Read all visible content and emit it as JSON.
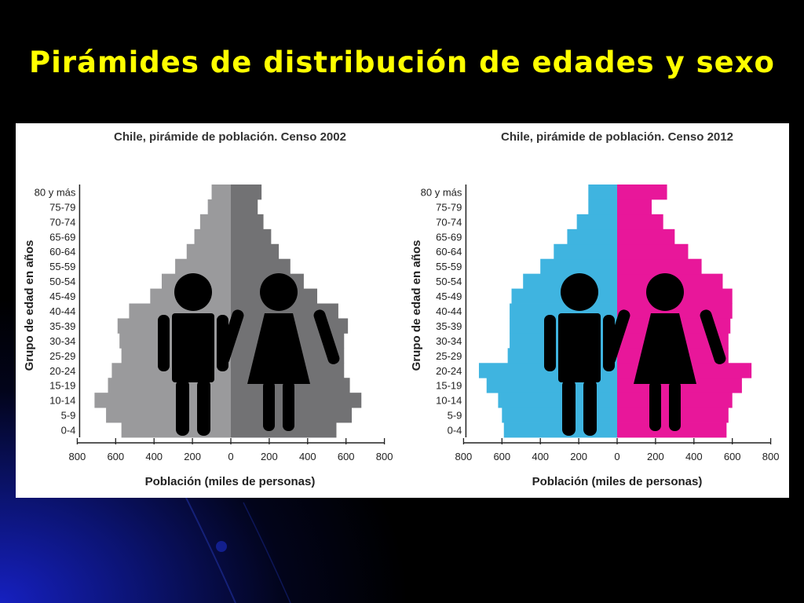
{
  "slide": {
    "title": "Pirámides de distribución de edades y sexo",
    "background_color": "#000000",
    "title_color": "#ffff00"
  },
  "chart_data": [
    {
      "type": "bar",
      "orientation": "horizontal-pyramid",
      "title": "Chile, pirámide de población. Censo 2002",
      "xlabel": "Población (miles de personas)",
      "ylabel": "Grupo de edad en años",
      "categories": [
        "0-4",
        "5-9",
        "10-14",
        "15-19",
        "20-24",
        "25-29",
        "30-34",
        "35-39",
        "40-44",
        "45-49",
        "50-54",
        "55-59",
        "60-64",
        "65-69",
        "70-74",
        "75-79",
        "80 y más"
      ],
      "xlim": [
        -800,
        800
      ],
      "xticks": [
        -800,
        -600,
        -400,
        -200,
        0,
        200,
        400,
        600,
        800
      ],
      "xtick_labels": [
        "800",
        "600",
        "400",
        "200",
        "0",
        "200",
        "400",
        "600",
        "800"
      ],
      "series": [
        {
          "values": [
            570,
            650,
            710,
            640,
            620,
            570,
            580,
            590,
            530,
            420,
            360,
            290,
            230,
            190,
            160,
            120,
            100
          ],
          "color": "#9a9a9c"
        },
        {
          "values": [
            550,
            630,
            680,
            620,
            590,
            590,
            590,
            610,
            560,
            450,
            380,
            310,
            250,
            210,
            170,
            140,
            160
          ],
          "color": "#727274"
        }
      ],
      "icons": [
        "male-figure-icon",
        "female-figure-icon"
      ]
    },
    {
      "type": "bar",
      "orientation": "horizontal-pyramid",
      "title": "Chile, pirámide de población. Censo 2012",
      "xlabel": "Población (miles de personas)",
      "ylabel": "Grupo de edad en años",
      "categories": [
        "0-4",
        "5-9",
        "10-14",
        "15-19",
        "20-24",
        "25-29",
        "30-34",
        "35-39",
        "40-44",
        "45-49",
        "50-54",
        "55-59",
        "60-64",
        "65-69",
        "70-74",
        "75-79",
        "80 y más"
      ],
      "xlim": [
        -800,
        800
      ],
      "xticks": [
        -800,
        -600,
        -400,
        -200,
        0,
        200,
        400,
        600,
        800
      ],
      "xtick_labels": [
        "800",
        "600",
        "400",
        "200",
        "0",
        "200",
        "400",
        "600",
        "800"
      ],
      "series": [
        {
          "values": [
            590,
            600,
            620,
            680,
            720,
            570,
            560,
            560,
            560,
            550,
            490,
            400,
            330,
            260,
            210,
            150,
            150
          ],
          "color": "#3fb4e0"
        },
        {
          "values": [
            570,
            580,
            600,
            650,
            700,
            580,
            580,
            590,
            600,
            600,
            550,
            440,
            370,
            300,
            240,
            180,
            260
          ],
          "color": "#e8179a"
        }
      ],
      "icons": [
        "male-figure-icon",
        "female-figure-icon"
      ]
    }
  ]
}
